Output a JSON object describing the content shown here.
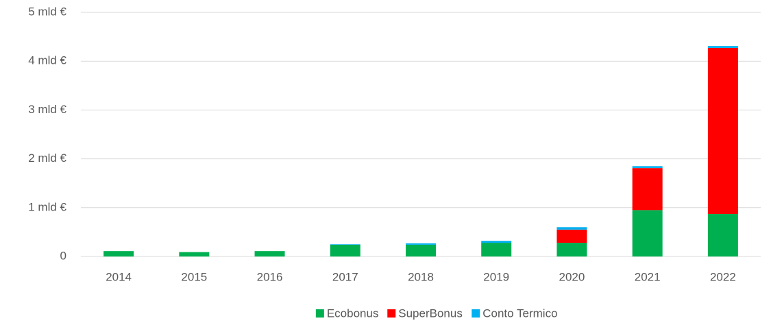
{
  "chart_data": {
    "type": "stacked_bar",
    "categories": [
      "2014",
      "2015",
      "2016",
      "2017",
      "2018",
      "2019",
      "2020",
      "2021",
      "2022"
    ],
    "series": [
      {
        "name": "Ecobonus",
        "color": "#00b050",
        "values": [
          0.11,
          0.09,
          0.11,
          0.24,
          0.24,
          0.28,
          0.28,
          0.95,
          0.87
        ]
      },
      {
        "name": "SuperBonus",
        "color": "#ff0000",
        "values": [
          0,
          0,
          0,
          0,
          0,
          0,
          0.27,
          0.86,
          3.4
        ]
      },
      {
        "name": "Conto Termico",
        "color": "#00b0f0",
        "values": [
          0,
          0,
          0,
          0.01,
          0.03,
          0.04,
          0.05,
          0.04,
          0.04
        ]
      }
    ],
    "ylim": [
      0,
      5
    ],
    "yticks": [
      0,
      {
        "value": 1,
        "label": "1 mld €"
      },
      {
        "value": 2,
        "label": "2 mld €"
      },
      {
        "value": 3,
        "label": "3 mld €"
      },
      {
        "value": 4,
        "label": "4 mld €"
      },
      {
        "value": 5,
        "label": "5 mld €"
      }
    ],
    "grid": true,
    "legend": "bottom"
  }
}
